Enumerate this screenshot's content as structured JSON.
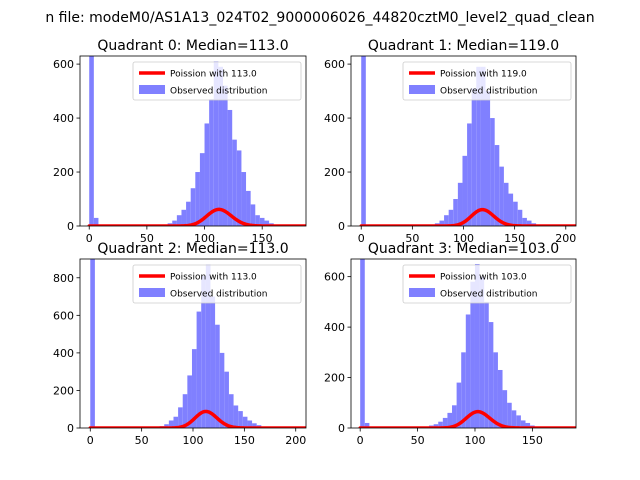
{
  "suptitle": "n file: modeM0/AS1A13_024T02_9000006026_44820cztM0_level2_quad_clean",
  "colors": {
    "observed": "#8080ff",
    "poisson": "#ff0000",
    "axis": "#000000"
  },
  "chart_data": [
    {
      "type": "bar",
      "title": "Quadrant 0: Median=113.0",
      "median": 113.0,
      "xlim": [
        -8,
        188
      ],
      "ylim": [
        0,
        630
      ],
      "xticks": [
        0,
        50,
        100,
        150
      ],
      "yticks": [
        0,
        200,
        400,
        600
      ],
      "bin_width": 4,
      "legend_position": "top-right",
      "series": [
        {
          "name": "Poission with 113.0",
          "kind": "line",
          "mean": 113.0,
          "scale": 1640
        },
        {
          "name": "Observed distribution",
          "kind": "histogram",
          "bins": [
            {
              "x": 0,
              "y": 630
            },
            {
              "x": 4,
              "y": 30
            },
            {
              "x": 68,
              "y": 10
            },
            {
              "x": 72,
              "y": 20
            },
            {
              "x": 76,
              "y": 40
            },
            {
              "x": 80,
              "y": 60
            },
            {
              "x": 84,
              "y": 90
            },
            {
              "x": 88,
              "y": 140
            },
            {
              "x": 92,
              "y": 200
            },
            {
              "x": 96,
              "y": 270
            },
            {
              "x": 100,
              "y": 380
            },
            {
              "x": 104,
              "y": 470
            },
            {
              "x": 108,
              "y": 610
            },
            {
              "x": 112,
              "y": 590
            },
            {
              "x": 116,
              "y": 520
            },
            {
              "x": 120,
              "y": 430
            },
            {
              "x": 124,
              "y": 320
            },
            {
              "x": 128,
              "y": 280
            },
            {
              "x": 132,
              "y": 200
            },
            {
              "x": 136,
              "y": 130
            },
            {
              "x": 140,
              "y": 80
            },
            {
              "x": 144,
              "y": 40
            },
            {
              "x": 148,
              "y": 30
            },
            {
              "x": 152,
              "y": 20
            },
            {
              "x": 156,
              "y": 10
            }
          ]
        }
      ]
    },
    {
      "type": "bar",
      "title": "Quadrant 1: Median=119.0",
      "median": 119.0,
      "xlim": [
        -10,
        210
      ],
      "ylim": [
        0,
        630
      ],
      "xticks": [
        0,
        50,
        100,
        150,
        200
      ],
      "yticks": [
        0,
        200,
        400,
        600
      ],
      "bin_width": 4.5,
      "legend_position": "top-right",
      "series": [
        {
          "name": "Poission with 119.0",
          "kind": "line",
          "mean": 119.0,
          "scale": 1660
        },
        {
          "name": "Observed distribution",
          "kind": "histogram",
          "bins": [
            {
              "x": 0,
              "y": 630
            },
            {
              "x": 72,
              "y": 10
            },
            {
              "x": 76.5,
              "y": 20
            },
            {
              "x": 81,
              "y": 40
            },
            {
              "x": 85.5,
              "y": 60
            },
            {
              "x": 90,
              "y": 100
            },
            {
              "x": 94.5,
              "y": 160
            },
            {
              "x": 99,
              "y": 260
            },
            {
              "x": 103.5,
              "y": 380
            },
            {
              "x": 108,
              "y": 510
            },
            {
              "x": 112.5,
              "y": 590
            },
            {
              "x": 117,
              "y": 590
            },
            {
              "x": 121.5,
              "y": 500
            },
            {
              "x": 126,
              "y": 400
            },
            {
              "x": 130.5,
              "y": 300
            },
            {
              "x": 135,
              "y": 220
            },
            {
              "x": 139.5,
              "y": 160
            },
            {
              "x": 144,
              "y": 120
            },
            {
              "x": 148.5,
              "y": 90
            },
            {
              "x": 153,
              "y": 60
            },
            {
              "x": 157.5,
              "y": 30
            },
            {
              "x": 162,
              "y": 20
            },
            {
              "x": 166.5,
              "y": 10
            }
          ]
        }
      ]
    },
    {
      "type": "bar",
      "title": "Quadrant 2: Median=113.0",
      "median": 113.0,
      "xlim": [
        -10,
        210
      ],
      "ylim": [
        0,
        900
      ],
      "xticks": [
        0,
        50,
        100,
        150,
        200
      ],
      "yticks": [
        0,
        200,
        400,
        600,
        800
      ],
      "bin_width": 4.5,
      "legend_position": "top-right",
      "series": [
        {
          "name": "Poission with 113.0",
          "kind": "line",
          "mean": 113.0,
          "scale": 2350
        },
        {
          "name": "Observed distribution",
          "kind": "histogram",
          "bins": [
            {
              "x": 0,
              "y": 900
            },
            {
              "x": 67.5,
              "y": 10
            },
            {
              "x": 72,
              "y": 20
            },
            {
              "x": 76.5,
              "y": 40
            },
            {
              "x": 81,
              "y": 60
            },
            {
              "x": 85.5,
              "y": 110
            },
            {
              "x": 90,
              "y": 180
            },
            {
              "x": 94.5,
              "y": 280
            },
            {
              "x": 99,
              "y": 420
            },
            {
              "x": 103.5,
              "y": 620
            },
            {
              "x": 108,
              "y": 810
            },
            {
              "x": 112.5,
              "y": 870
            },
            {
              "x": 117,
              "y": 700
            },
            {
              "x": 121.5,
              "y": 550
            },
            {
              "x": 126,
              "y": 400
            },
            {
              "x": 130.5,
              "y": 300
            },
            {
              "x": 135,
              "y": 180
            },
            {
              "x": 139.5,
              "y": 120
            },
            {
              "x": 144,
              "y": 90
            },
            {
              "x": 148.5,
              "y": 60
            },
            {
              "x": 153,
              "y": 40
            },
            {
              "x": 157.5,
              "y": 25
            },
            {
              "x": 162,
              "y": 15
            },
            {
              "x": 166.5,
              "y": 8
            }
          ]
        }
      ]
    },
    {
      "type": "bar",
      "title": "Quadrant 3: Median=103.0",
      "median": 103.0,
      "xlim": [
        -8,
        188
      ],
      "ylim": [
        0,
        670
      ],
      "xticks": [
        0,
        50,
        100,
        150
      ],
      "yticks": [
        0,
        200,
        400,
        600
      ],
      "bin_width": 4,
      "legend_position": "top-right",
      "series": [
        {
          "name": "Poission with 103.0",
          "kind": "line",
          "mean": 103.0,
          "scale": 1650
        },
        {
          "name": "Observed distribution",
          "kind": "histogram",
          "bins": [
            {
              "x": 0,
              "y": 670
            },
            {
              "x": 4,
              "y": 20
            },
            {
              "x": 56,
              "y": 5
            },
            {
              "x": 60,
              "y": 10
            },
            {
              "x": 64,
              "y": 15
            },
            {
              "x": 68,
              "y": 25
            },
            {
              "x": 72,
              "y": 40
            },
            {
              "x": 76,
              "y": 60
            },
            {
              "x": 80,
              "y": 90
            },
            {
              "x": 84,
              "y": 180
            },
            {
              "x": 88,
              "y": 300
            },
            {
              "x": 92,
              "y": 450
            },
            {
              "x": 96,
              "y": 580
            },
            {
              "x": 100,
              "y": 650
            },
            {
              "x": 104,
              "y": 600
            },
            {
              "x": 108,
              "y": 500
            },
            {
              "x": 112,
              "y": 420
            },
            {
              "x": 116,
              "y": 300
            },
            {
              "x": 120,
              "y": 230
            },
            {
              "x": 124,
              "y": 150
            },
            {
              "x": 128,
              "y": 100
            },
            {
              "x": 132,
              "y": 70
            },
            {
              "x": 136,
              "y": 50
            },
            {
              "x": 140,
              "y": 30
            },
            {
              "x": 144,
              "y": 20
            },
            {
              "x": 148,
              "y": 10
            }
          ]
        }
      ]
    }
  ]
}
